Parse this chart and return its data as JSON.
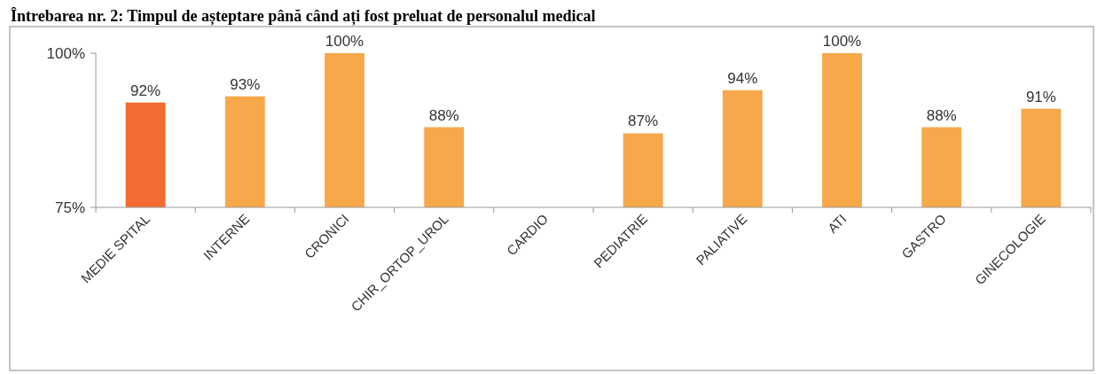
{
  "chart_data": {
    "type": "bar",
    "title": "Întrebarea nr. 2: Timpul de așteptare până când ați fost preluat de personalul medical",
    "categories": [
      "MEDIE SPITAL",
      "INTERNE",
      "CRONICI",
      "CHIR_ORTOP_UROL",
      "CARDIO",
      "PEDIATRIE",
      "PALIATIVE",
      "ATI",
      "GASTRO",
      "GINECOLOGIE"
    ],
    "values": [
      92,
      93,
      100,
      88,
      null,
      87,
      94,
      100,
      88,
      91
    ],
    "value_labels": [
      "92%",
      "93%",
      "100%",
      "88%",
      null,
      "87%",
      "94%",
      "100%",
      "88%",
      "91%"
    ],
    "colors": [
      "#f26b30",
      "#f7a84a",
      "#f7a84a",
      "#f7a84a",
      null,
      "#f7a84a",
      "#f7a84a",
      "#f7a84a",
      "#f7a84a",
      "#f7a84a"
    ],
    "ylim": [
      75,
      100
    ],
    "yticks": [
      {
        "value": 75,
        "label": "75%"
      },
      {
        "value": 100,
        "label": "100%"
      }
    ]
  }
}
